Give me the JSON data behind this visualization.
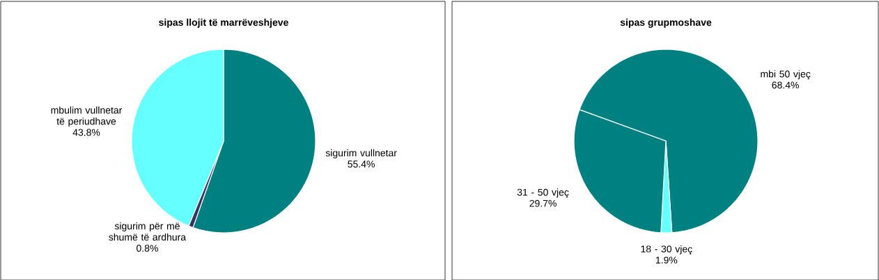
{
  "chart_data": [
    {
      "type": "pie",
      "title": "sipas llojit të marrëveshjeve",
      "categories": [
        "sigurim vullnetar",
        "sigurim për më shumë të ardhura",
        "mbulim vullnetar të periudhave"
      ],
      "values": [
        55.4,
        0.8,
        43.8
      ],
      "value_labels": [
        "55.4%",
        "0.8%",
        "43.8%"
      ],
      "colors": [
        "#008080",
        "#333366",
        "#66ffff"
      ]
    },
    {
      "type": "pie",
      "title": "sipas grupmoshave",
      "categories": [
        "mbi 50 vjeç",
        "18 - 30 vjeç",
        "31 - 50 vjeç"
      ],
      "values": [
        68.4,
        1.9,
        29.7
      ],
      "value_labels": [
        "68.4%",
        "1.9%",
        "29.7%"
      ],
      "colors": [
        "#008080",
        "#66ffff",
        "#008080"
      ]
    }
  ]
}
